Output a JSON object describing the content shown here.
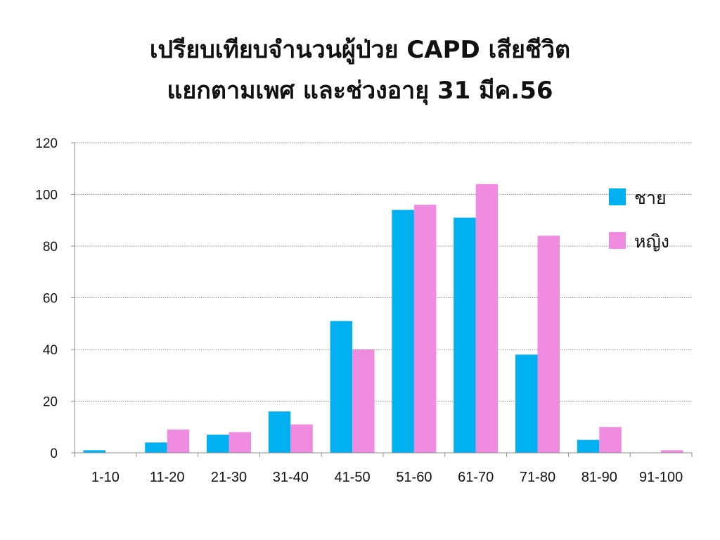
{
  "chart_data": {
    "type": "bar",
    "title_line1": "เปรียบเทียบจำนวนผู้ป่วย CAPD เสียชีวิต",
    "title_line2": "แยกตามเพศ และช่วงอายุ  31 มีค.56",
    "xlabel": "",
    "ylabel": "",
    "ylim": [
      0,
      120
    ],
    "yticks": [
      0,
      20,
      40,
      60,
      80,
      100,
      120
    ],
    "grid": true,
    "legend_position": "right",
    "categories": [
      "1-10",
      "11-20",
      "21-30",
      "31-40",
      "41-50",
      "51-60",
      "61-70",
      "71-80",
      "81-90",
      "91-100"
    ],
    "series": [
      {
        "name": "ชาย",
        "color": "#00B0F0",
        "values": [
          1,
          4,
          7,
          16,
          51,
          94,
          91,
          38,
          5,
          0
        ]
      },
      {
        "name": "หญิง",
        "color": "#F08CE0",
        "values": [
          0,
          9,
          8,
          11,
          40,
          96,
          104,
          84,
          10,
          1
        ]
      }
    ]
  }
}
